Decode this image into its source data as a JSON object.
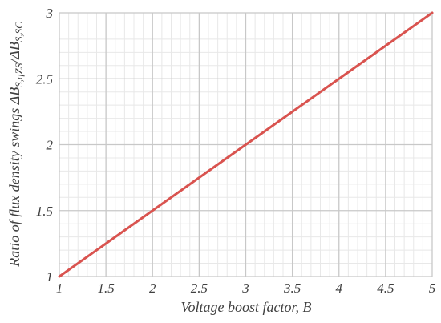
{
  "chart_data": {
    "type": "line",
    "xlabel": "Voltage boost factor, B",
    "ylabel_parts": {
      "prefix": "Ratio of flux density swings ",
      "delta1": "ΔB",
      "sub1": "S,qZS",
      "slash": "/",
      "delta2": "ΔB",
      "sub2": "S,SC"
    },
    "xlim": [
      1,
      5
    ],
    "ylim": [
      1,
      3
    ],
    "xticks": [
      "1",
      "1.5",
      "2",
      "2.5",
      "3",
      "3.5",
      "4",
      "4.5",
      "5"
    ],
    "yticks": [
      "1",
      "1.5",
      "2",
      "2.5",
      "3"
    ],
    "grid": true,
    "series": [
      {
        "x": [
          1,
          1.5,
          2,
          2.5,
          3,
          3.5,
          4,
          4.5,
          5
        ],
        "y": [
          1,
          1.25,
          1.5,
          1.75,
          2,
          2.25,
          2.5,
          2.75,
          3
        ],
        "color": "#d9534f"
      }
    ]
  }
}
